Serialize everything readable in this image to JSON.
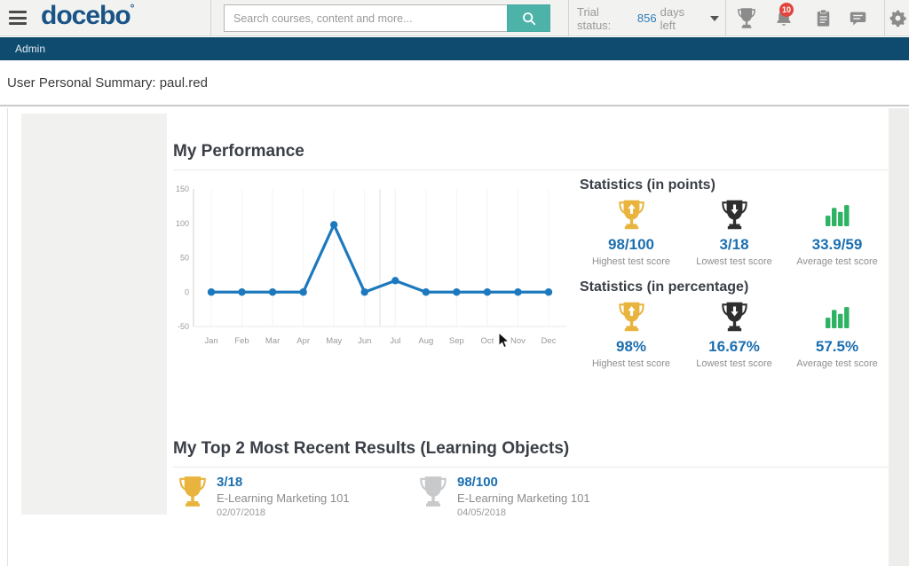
{
  "header": {
    "logo_text": "docebo",
    "logo_mark": "°",
    "search": {
      "placeholder": "Search courses, content and more..."
    },
    "trial_status": {
      "prefix": "Trial status:",
      "days": "856",
      "suffix": "days left"
    },
    "notification_count": "10",
    "icons": [
      "hamburger-menu-icon",
      "search-icon",
      "caret-down-icon",
      "trophy-icon",
      "bell-icon",
      "clipboard-icon",
      "chat-icon",
      "gear-icon"
    ]
  },
  "admin_bar": {
    "label": "Admin"
  },
  "page": {
    "title": "User Personal Summary: paul.red"
  },
  "performance": {
    "title": "My Performance",
    "stats_points": {
      "title": "Statistics (in points)",
      "items": [
        {
          "icon": "trophy-up-gold-icon",
          "value": "98/100",
          "label": "Highest test score"
        },
        {
          "icon": "trophy-down-black-icon",
          "value": "3/18",
          "label": "Lowest test score"
        },
        {
          "icon": "bar-chart-green-icon",
          "value": "33.9/59",
          "label": "Average test score"
        }
      ]
    },
    "stats_percentage": {
      "title": "Statistics (in percentage)",
      "items": [
        {
          "icon": "trophy-up-gold-icon",
          "value": "98%",
          "label": "Highest test score"
        },
        {
          "icon": "trophy-down-black-icon",
          "value": "16.67%",
          "label": "Lowest test score"
        },
        {
          "icon": "bar-chart-green-icon",
          "value": "57.5%",
          "label": "Average test score"
        }
      ]
    }
  },
  "chart_data": {
    "type": "line",
    "title": "",
    "xlabel": "",
    "ylabel": "",
    "categories": [
      "Jan",
      "Feb",
      "Mar",
      "Apr",
      "May",
      "Jun",
      "Jul",
      "Aug",
      "Sep",
      "Oct",
      "Nov",
      "Dec"
    ],
    "values": [
      0,
      0,
      0,
      0,
      98,
      0,
      16.67,
      0,
      0,
      0,
      0,
      0
    ],
    "ylim": [
      -50,
      150
    ],
    "yticks": [
      150,
      100,
      50,
      0,
      -50
    ],
    "line_color": "#1c79bd",
    "marker": "circle",
    "grid": "faint vertical gridlines per month",
    "legend": "none"
  },
  "recent_results": {
    "title": "My Top 2 Most Recent Results (Learning Objects)",
    "items": [
      {
        "icon": "trophy-gold-icon",
        "score": "3/18",
        "course": "E-Learning Marketing 101",
        "date": "02/07/2018"
      },
      {
        "icon": "trophy-silver-icon",
        "score": "98/100",
        "course": "E-Learning Marketing 101",
        "date": "04/05/2018"
      }
    ]
  },
  "colors": {
    "navy": "#0e4b6e",
    "teal": "#4db3a9",
    "value_blue": "#1c6fb0",
    "line_blue": "#1c79bd",
    "gold": "#e9b43e",
    "silver": "#c7c9cb",
    "trophy_black": "#2e2e2e",
    "green": "#2eb263",
    "badge_red": "#e2453d"
  }
}
